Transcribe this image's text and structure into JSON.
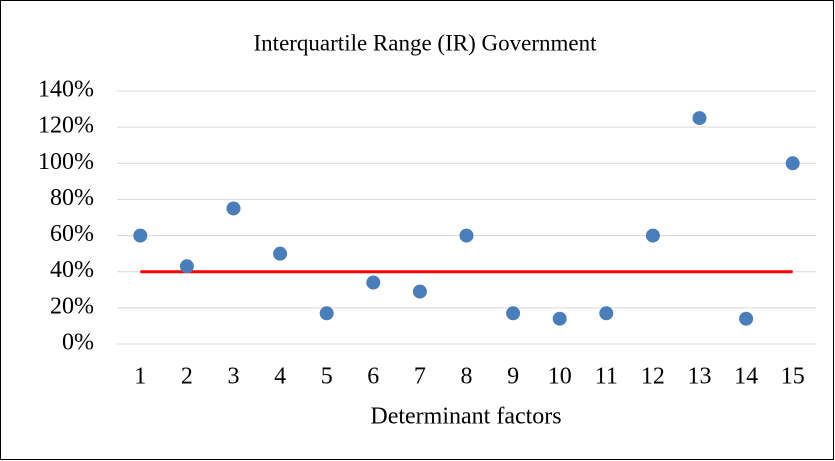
{
  "chart_data": {
    "type": "scatter",
    "title": "Interquartile Range (IR) Government",
    "x_label": "Determinant factors",
    "series": [
      {
        "type": "scatter",
        "color": "#4a7ebb",
        "x": [
          1,
          2,
          3,
          4,
          5,
          6,
          7,
          8,
          9,
          10,
          11,
          12,
          13,
          14,
          15
        ],
        "values": [
          60,
          43,
          75,
          50,
          17,
          34,
          29,
          60,
          17,
          14,
          17,
          60,
          125,
          14,
          100
        ]
      },
      {
        "type": "line",
        "color": "#ff0000",
        "x": [
          1,
          15
        ],
        "values": [
          40,
          40
        ]
      }
    ],
    "xlim": [
      0.5,
      15.5
    ],
    "xticks": [
      1,
      2,
      3,
      4,
      5,
      6,
      7,
      8,
      9,
      10,
      11,
      12,
      13,
      14,
      15
    ],
    "ylim": [
      0,
      140
    ],
    "yticks": [
      {
        "value": 0,
        "label": "0%"
      },
      {
        "value": 20,
        "label": "20%"
      },
      {
        "value": 40,
        "label": "40%"
      },
      {
        "value": 60,
        "label": "60%"
      },
      {
        "value": 80,
        "label": "80%"
      },
      {
        "value": 100,
        "label": "100%"
      },
      {
        "value": 120,
        "label": "120%"
      },
      {
        "value": 140,
        "label": "140%"
      }
    ],
    "grid": true
  }
}
